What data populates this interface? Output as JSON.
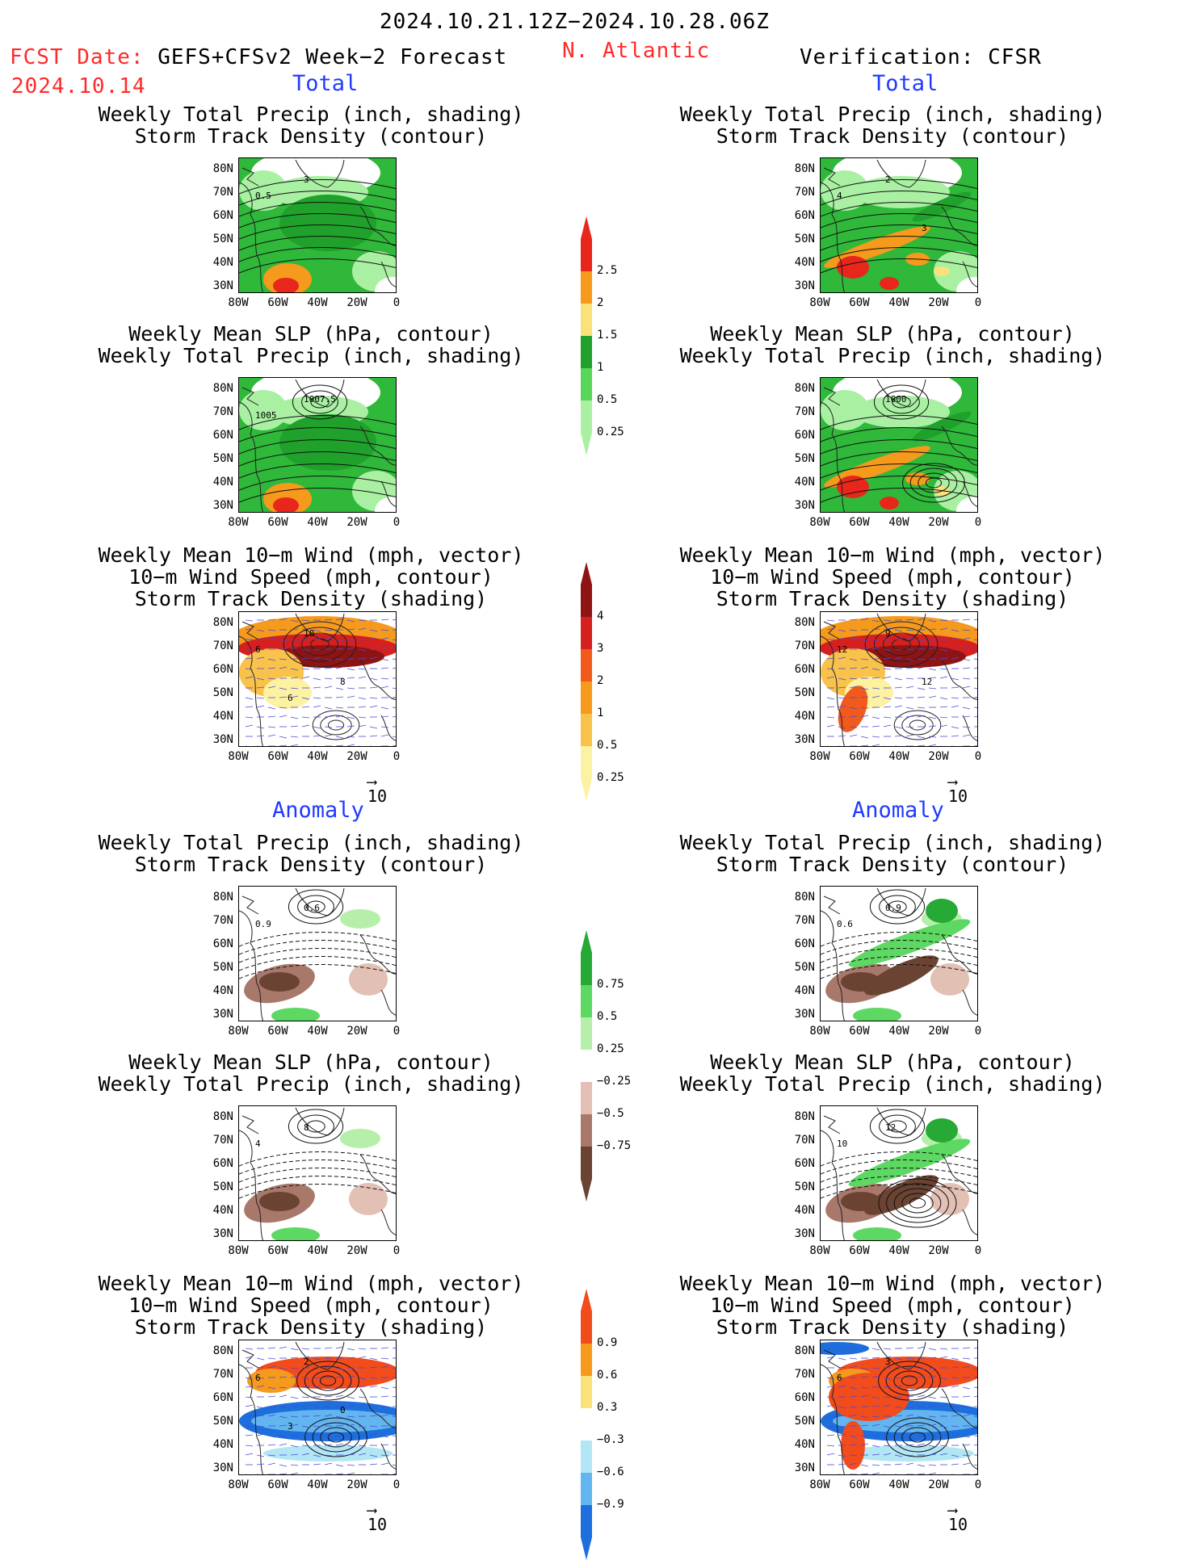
{
  "header": {
    "date_range": "2024.10.21.12Z−2024.10.28.06Z",
    "fcst_label": "FCST Date: ",
    "fcst_model": "GEFS+CFSv2 Week−2 Forecast",
    "fcst_date": "2024.10.14",
    "region": "N. Atlantic",
    "verification": "Verification: CFSR"
  },
  "sections": {
    "total": "Total",
    "anomaly": "Anomaly"
  },
  "titles": {
    "precip_storm": [
      "Weekly Total Precip (inch, shading)",
      "Storm Track Density (contour)"
    ],
    "slp_precip": [
      "Weekly Mean SLP (hPa, contour)",
      "Weekly Total Precip (inch, shading)"
    ],
    "wind_storm": [
      "Weekly Mean 10−m Wind (mph, vector)",
      "10−m Wind Speed (mph, contour)",
      "Storm Track Density (shading)"
    ]
  },
  "axes": {
    "lat": [
      "80N",
      "70N",
      "60N",
      "50N",
      "40N",
      "30N"
    ],
    "lon": [
      "80W",
      "60W",
      "40W",
      "20W",
      "0"
    ]
  },
  "vector_ref": "10",
  "colorbars": {
    "precip_total": {
      "labels": [
        "2.5",
        "2",
        "1.5",
        "1",
        "0.5",
        "0.25"
      ],
      "colors": [
        "#e8261c",
        "#f59a1c",
        "#fbe17a",
        "#1fa12b",
        "#57d65a",
        "#a9f0a3"
      ]
    },
    "storm_total": {
      "labels": [
        "4",
        "3",
        "2",
        "1",
        "0.5",
        "0.25"
      ],
      "colors": [
        "#8e1414",
        "#d61f1f",
        "#f25a1c",
        "#f59a1c",
        "#f9c24a",
        "#fdf1a2"
      ]
    },
    "precip_anom": {
      "labels": [
        "0.75",
        "0.5",
        "0.25",
        "−0.25",
        "−0.5",
        "−0.75"
      ],
      "colors": [
        "#27a935",
        "#5dd862",
        "#b5efaa",
        "#ffffff",
        "#e2c0b4",
        "#a8786a",
        "#6a4333"
      ]
    },
    "storm_anom": {
      "labels": [
        "0.9",
        "0.6",
        "0.3",
        "−0.3",
        "−0.6",
        "−0.9"
      ],
      "colors": [
        "#f24b1c",
        "#f59a1c",
        "#fbe17a",
        "#ffffff",
        "#b2e6f5",
        "#63b5ef",
        "#1c6fdc"
      ]
    }
  },
  "panel_labels": {
    "p1": [
      "3",
      "0.5"
    ],
    "p2": [
      "2",
      "4",
      "3"
    ],
    "p3": [
      "1007.5",
      "1005"
    ],
    "p4": [
      "1000"
    ],
    "p5": [
      "10",
      "6",
      "8",
      "6"
    ],
    "p6": [
      "9",
      "12",
      "12"
    ],
    "p7": [
      "0.6",
      "0.9"
    ],
    "p8": [
      "0.9",
      "0.6"
    ],
    "p9": [
      "8",
      "4"
    ],
    "p10": [
      "12",
      "10"
    ],
    "p11": [
      "2",
      "6",
      "0",
      "3"
    ],
    "p12": [
      "3",
      "6"
    ]
  }
}
